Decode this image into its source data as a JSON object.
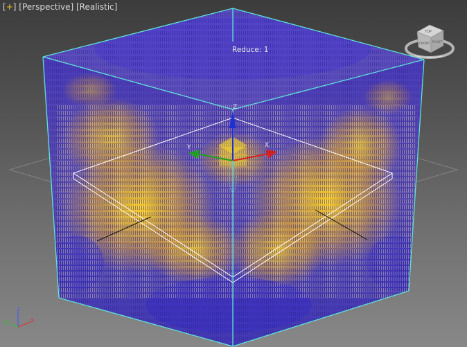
{
  "viewport": {
    "menu_plus": "+",
    "view_mode": "Perspective",
    "shading_mode": "Realistic"
  },
  "overlay": {
    "reduce_label": "Reduce: 1"
  },
  "viewcube": {
    "faces": {
      "top": "TOP",
      "front": "FRONT",
      "right": "RIGHT"
    }
  },
  "gizmo": {
    "x_label": "X",
    "y_label": "Y",
    "z_label": "Z"
  },
  "axis_triad": {
    "x_label": "x",
    "y_label": "y",
    "z_label": "z"
  },
  "colors": {
    "bbox": "#5fe3d8",
    "particles_cool": "#4a3ad0",
    "particles_warm": "#f5c518",
    "gizmo_x": "#d42020",
    "gizmo_y": "#20a020",
    "gizmo_z": "#2030d0",
    "selection": "#ffffff"
  }
}
